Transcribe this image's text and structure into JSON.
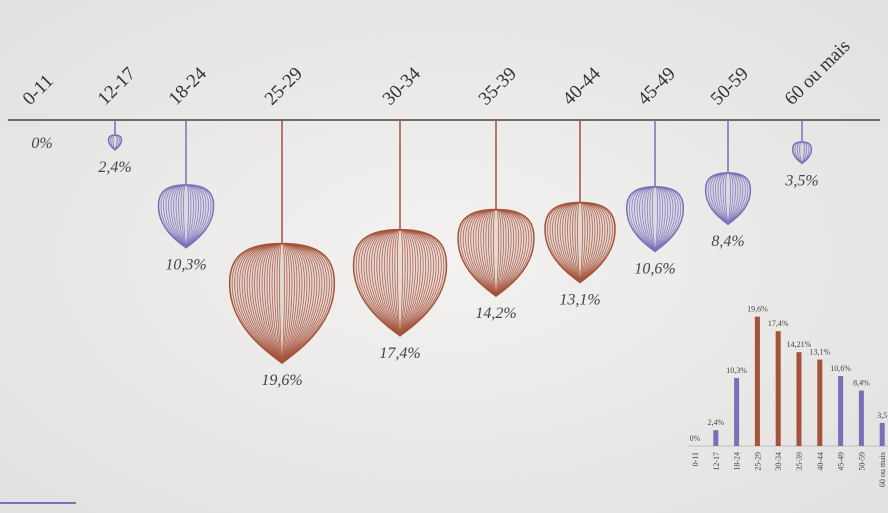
{
  "chart_data": [
    {
      "type": "lantern",
      "categories": [
        "0-11",
        "12-17",
        "18-24",
        "25-29",
        "30-34",
        "35-39",
        "40-44",
        "45-49",
        "50-59",
        "60 ou mais"
      ],
      "values": [
        0,
        2.4,
        10.3,
        19.6,
        17.4,
        14.2,
        13.1,
        10.6,
        8.4,
        3.5
      ],
      "value_labels": [
        "0%",
        "2,4%",
        "10,3%",
        "19,6%",
        "17,4%",
        "14,2%",
        "13,1%",
        "10,6%",
        "8,4%",
        "3,5%"
      ],
      "colors": [
        "#7a6fb8",
        "#7a6fb8",
        "#7a6fb8",
        "#a5523a",
        "#a5523a",
        "#a5523a",
        "#a5523a",
        "#7a6fb8",
        "#7a6fb8",
        "#7a6fb8"
      ]
    },
    {
      "type": "bar",
      "categories": [
        "0-11",
        "12-17",
        "18-24",
        "25-29",
        "30-34",
        "35-39",
        "40-44",
        "45-49",
        "50-59",
        "60 ou mais"
      ],
      "values": [
        0,
        2.4,
        10.3,
        19.6,
        17.4,
        14.21,
        13.1,
        10.6,
        8.4,
        3.5
      ],
      "value_labels": [
        "0%",
        "2,4%",
        "10,3%",
        "19,6%",
        "17,4%",
        "14,21%",
        "13,1%",
        "10,6%",
        "8,4%",
        "3,5"
      ],
      "colors": [
        "#7a6fb8",
        "#7a6fb8",
        "#7a6fb8",
        "#a5523a",
        "#a5523a",
        "#a5523a",
        "#a5523a",
        "#7a6fb8",
        "#7a6fb8",
        "#7a6fb8"
      ]
    }
  ]
}
